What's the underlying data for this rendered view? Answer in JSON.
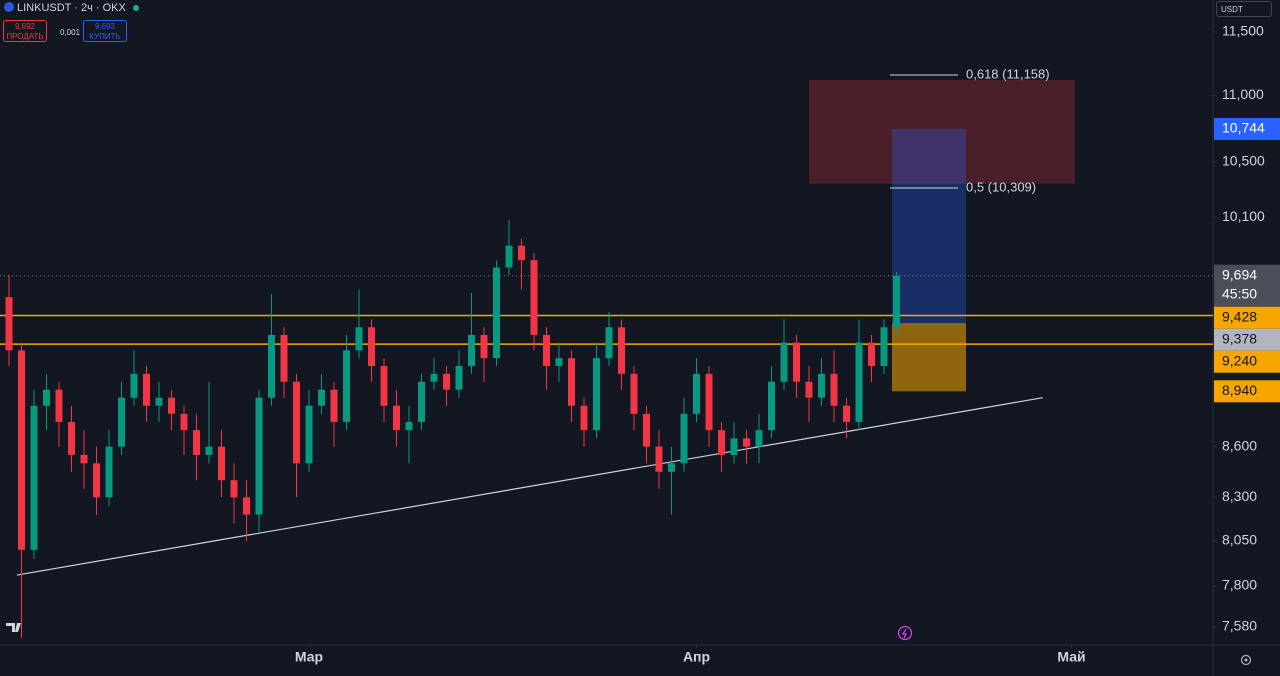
{
  "header": {
    "symbol": "LINKUSDT · 2ч · OKX",
    "sell_price": "9,692",
    "sell_label": "ПРОДАТЬ",
    "spread": "0,001",
    "buy_price": "9,693",
    "buy_label": "КУПИТЬ",
    "currency": "USDT"
  },
  "chart_data": {
    "type": "candlestick",
    "log_scale": true,
    "ylim": [
      7.484,
      11.76
    ],
    "xlim": [
      -24.72,
      72.32
    ],
    "yticks": [
      {
        "value": 11.5,
        "label": "11,500"
      },
      {
        "value": 11,
        "label": "11,000"
      },
      {
        "value": 10.5,
        "label": "10,500"
      },
      {
        "value": 10.1,
        "label": "10,100"
      },
      {
        "value": 8.6,
        "label": "8,600"
      },
      {
        "value": 8.3,
        "label": "8,300"
      },
      {
        "value": 8.05,
        "label": "8,050"
      },
      {
        "value": 7.8,
        "label": "7,800"
      },
      {
        "value": 7.58,
        "label": "7,580"
      }
    ],
    "xticks": [
      {
        "value": 0,
        "label": "Мар"
      },
      {
        "value": 31,
        "label": "Апр"
      },
      {
        "value": 61,
        "label": "Май"
      }
    ],
    "up_color": "#089981",
    "down_color": "#f23645",
    "x": [
      -24,
      -23,
      -22,
      -21,
      -20,
      -19,
      -18,
      -17,
      -16,
      -15,
      -14,
      -13,
      -12,
      -11,
      -10,
      -9,
      -8,
      -7,
      -6,
      -5,
      -4,
      -3,
      -2,
      -1,
      0,
      1,
      2,
      3,
      4,
      5,
      6,
      7,
      8,
      9,
      10,
      11,
      12,
      13,
      14,
      15,
      16,
      17,
      18,
      19,
      20,
      21,
      22,
      23,
      24,
      25,
      26,
      27,
      28,
      29,
      30,
      31,
      32,
      33,
      34,
      35,
      36,
      37,
      38,
      39,
      40,
      41,
      42,
      43,
      44,
      45,
      46,
      47
    ],
    "open": [
      9.55,
      9.2,
      8.0,
      8.85,
      8.95,
      8.75,
      8.55,
      8.5,
      8.3,
      8.6,
      8.9,
      9.05,
      8.85,
      8.9,
      8.8,
      8.7,
      8.55,
      8.6,
      8.4,
      8.3,
      8.2,
      8.9,
      9.3,
      9.0,
      8.5,
      8.85,
      8.95,
      8.75,
      9.2,
      9.35,
      9.1,
      8.85,
      8.7,
      8.75,
      9.0,
      9.05,
      8.95,
      9.1,
      9.3,
      9.15,
      9.75,
      9.9,
      9.8,
      9.3,
      9.1,
      9.15,
      8.85,
      8.7,
      9.15,
      9.35,
      9.05,
      8.8,
      8.6,
      8.45,
      8.5,
      8.8,
      9.05,
      8.7,
      8.55,
      8.65,
      8.6,
      8.7,
      9.0,
      9.25,
      9.0,
      8.9,
      9.05,
      8.85,
      8.75,
      9.25,
      9.1,
      9.35
    ],
    "high": [
      9.7,
      9.25,
      8.95,
      9.05,
      9.0,
      8.85,
      8.7,
      8.6,
      8.7,
      9.0,
      9.2,
      9.1,
      9.0,
      8.95,
      8.85,
      8.8,
      9.0,
      8.7,
      8.5,
      8.4,
      8.95,
      9.57,
      9.35,
      9.05,
      8.95,
      9.05,
      9.0,
      9.3,
      9.6,
      9.4,
      9.15,
      8.95,
      8.85,
      9.05,
      9.15,
      9.1,
      9.2,
      9.58,
      9.35,
      9.8,
      10.08,
      9.95,
      9.85,
      9.35,
      9.25,
      9.2,
      8.9,
      9.25,
      9.45,
      9.4,
      9.1,
      8.85,
      8.7,
      8.6,
      8.9,
      9.15,
      9.1,
      8.75,
      8.75,
      8.7,
      8.8,
      9.1,
      9.4,
      9.3,
      9.1,
      9.15,
      9.2,
      8.9,
      9.4,
      9.3,
      9.4,
      9.72
    ],
    "low": [
      9.1,
      7.52,
      7.95,
      8.7,
      8.6,
      8.45,
      8.35,
      8.2,
      8.25,
      8.55,
      8.85,
      8.75,
      8.75,
      8.7,
      8.55,
      8.4,
      8.5,
      8.3,
      8.15,
      8.05,
      8.1,
      8.85,
      8.9,
      8.3,
      8.45,
      8.8,
      8.6,
      8.7,
      9.15,
      9.0,
      8.75,
      8.6,
      8.5,
      8.7,
      8.95,
      8.85,
      8.9,
      9.05,
      9.0,
      9.1,
      9.7,
      9.6,
      9.2,
      8.95,
      9.0,
      8.75,
      8.6,
      8.65,
      9.1,
      8.95,
      8.7,
      8.5,
      8.35,
      8.2,
      8.45,
      8.75,
      8.6,
      8.45,
      8.5,
      8.5,
      8.5,
      8.65,
      8.95,
      8.9,
      8.75,
      8.85,
      8.75,
      8.65,
      8.7,
      9.0,
      9.05,
      9.3
    ],
    "close": [
      9.2,
      8.0,
      8.85,
      8.95,
      8.75,
      8.55,
      8.5,
      8.3,
      8.6,
      8.9,
      9.05,
      8.85,
      8.9,
      8.8,
      8.7,
      8.55,
      8.6,
      8.4,
      8.3,
      8.2,
      8.9,
      9.3,
      9.0,
      8.5,
      8.85,
      8.95,
      8.75,
      9.2,
      9.35,
      9.1,
      8.85,
      8.7,
      8.75,
      9.0,
      9.05,
      8.95,
      9.1,
      9.3,
      9.15,
      9.75,
      9.9,
      9.8,
      9.3,
      9.1,
      9.15,
      8.85,
      8.7,
      9.15,
      9.35,
      9.05,
      8.8,
      8.6,
      8.45,
      8.5,
      8.8,
      9.05,
      8.7,
      8.55,
      8.65,
      8.6,
      8.7,
      9.0,
      9.25,
      9.0,
      8.9,
      9.05,
      8.85,
      8.75,
      9.25,
      9.1,
      9.35,
      9.694
    ],
    "last_price": {
      "value": 9.694,
      "label": "9,694",
      "countdown": "45:50"
    },
    "levels": [
      {
        "value": 9.428,
        "label": "9,428",
        "color": "#f7a600"
      },
      {
        "value": 9.24,
        "label": "9,240",
        "color": "#f7a600"
      }
    ],
    "trendline": {
      "x": [
        -23.36,
        58.7
      ],
      "y": [
        7.86,
        8.9
      ],
      "color": "#d1d4dc"
    },
    "fib": {
      "x": [
        46.48,
        51.92
      ],
      "levels": [
        {
          "value": 11.158,
          "label": "0,618 (11,158)"
        },
        {
          "value": 10.309,
          "label": "0,5 (10,309)"
        }
      ]
    },
    "zone": {
      "x": [
        40.0,
        61.28
      ],
      "y": [
        10.34,
        11.12
      ],
      "color": "#f23645"
    },
    "position": {
      "x": [
        46.64,
        52.56
      ],
      "target": {
        "value": 10.744,
        "label": "10,744"
      },
      "entry": {
        "value": 9.378,
        "label": "9,378"
      },
      "stop": {
        "value": 8.94,
        "label": "8,940"
      }
    }
  }
}
